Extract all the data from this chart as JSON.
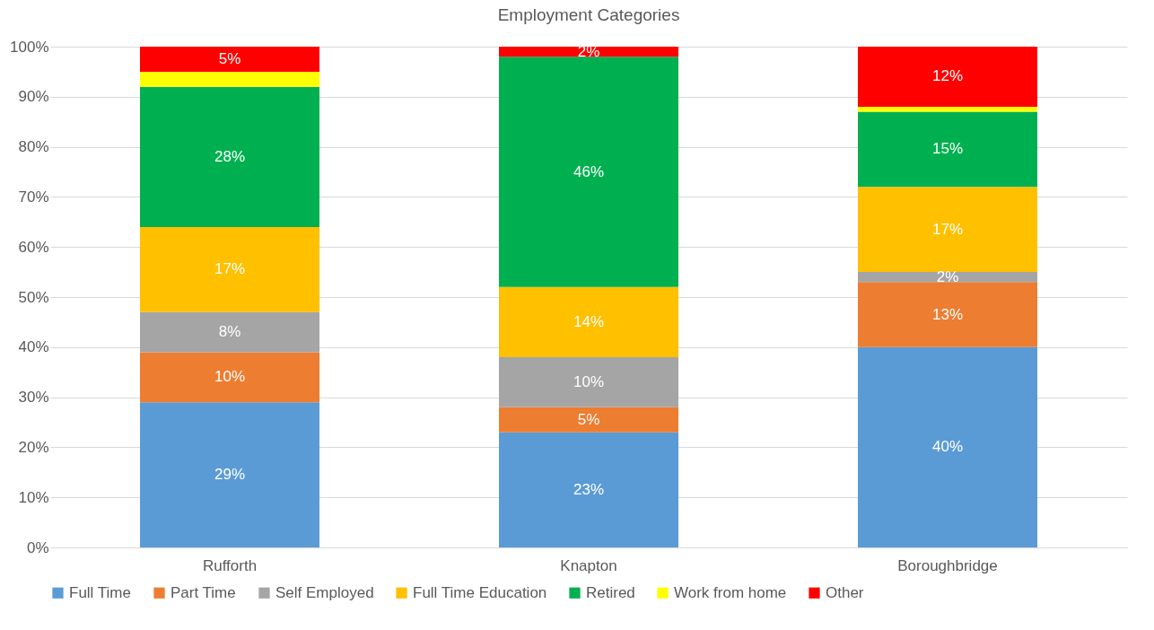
{
  "chart_data": {
    "type": "bar",
    "stacked": true,
    "title": "Employment Categories",
    "categories": [
      "Rufforth",
      "Knapton",
      "Boroughbridge"
    ],
    "series": [
      {
        "name": "Full Time",
        "color": "#5b9bd5",
        "values": [
          29,
          23,
          40
        ],
        "value_labels": [
          "29%",
          "23%",
          "40%"
        ]
      },
      {
        "name": "Part Time",
        "color": "#ed7d31",
        "values": [
          10,
          5,
          13
        ],
        "value_labels": [
          "10%",
          "5%",
          "13%"
        ]
      },
      {
        "name": "Self Employed",
        "color": "#a5a5a5",
        "values": [
          8,
          10,
          2
        ],
        "value_labels": [
          "8%",
          "10%",
          "2%"
        ]
      },
      {
        "name": "Full Time Education",
        "color": "#ffc000",
        "values": [
          17,
          14,
          17
        ],
        "value_labels": [
          "17%",
          "14%",
          "17%"
        ]
      },
      {
        "name": "Retired",
        "color": "#00b050",
        "values": [
          28,
          46,
          15
        ],
        "value_labels": [
          "28%",
          "46%",
          "15%"
        ]
      },
      {
        "name": "Work from home",
        "color": "#ffff00",
        "values": [
          3,
          0,
          1
        ],
        "value_labels": [
          null,
          null,
          null
        ]
      },
      {
        "name": "Other",
        "color": "#ff0000",
        "values": [
          5,
          2,
          12
        ],
        "value_labels": [
          "5%",
          "2%",
          "12%"
        ]
      }
    ],
    "ylim": [
      0,
      100
    ],
    "yticks": [
      {
        "value": 0,
        "label": "0%"
      },
      {
        "value": 10,
        "label": "10%"
      },
      {
        "value": 20,
        "label": "20%"
      },
      {
        "value": 30,
        "label": "30%"
      },
      {
        "value": 40,
        "label": "40%"
      },
      {
        "value": 50,
        "label": "50%"
      },
      {
        "value": 60,
        "label": "60%"
      },
      {
        "value": 70,
        "label": "70%"
      },
      {
        "value": 80,
        "label": "80%"
      },
      {
        "value": 90,
        "label": "90%"
      },
      {
        "value": 100,
        "label": "100%"
      }
    ],
    "grid": "y",
    "legend": "bottom"
  }
}
